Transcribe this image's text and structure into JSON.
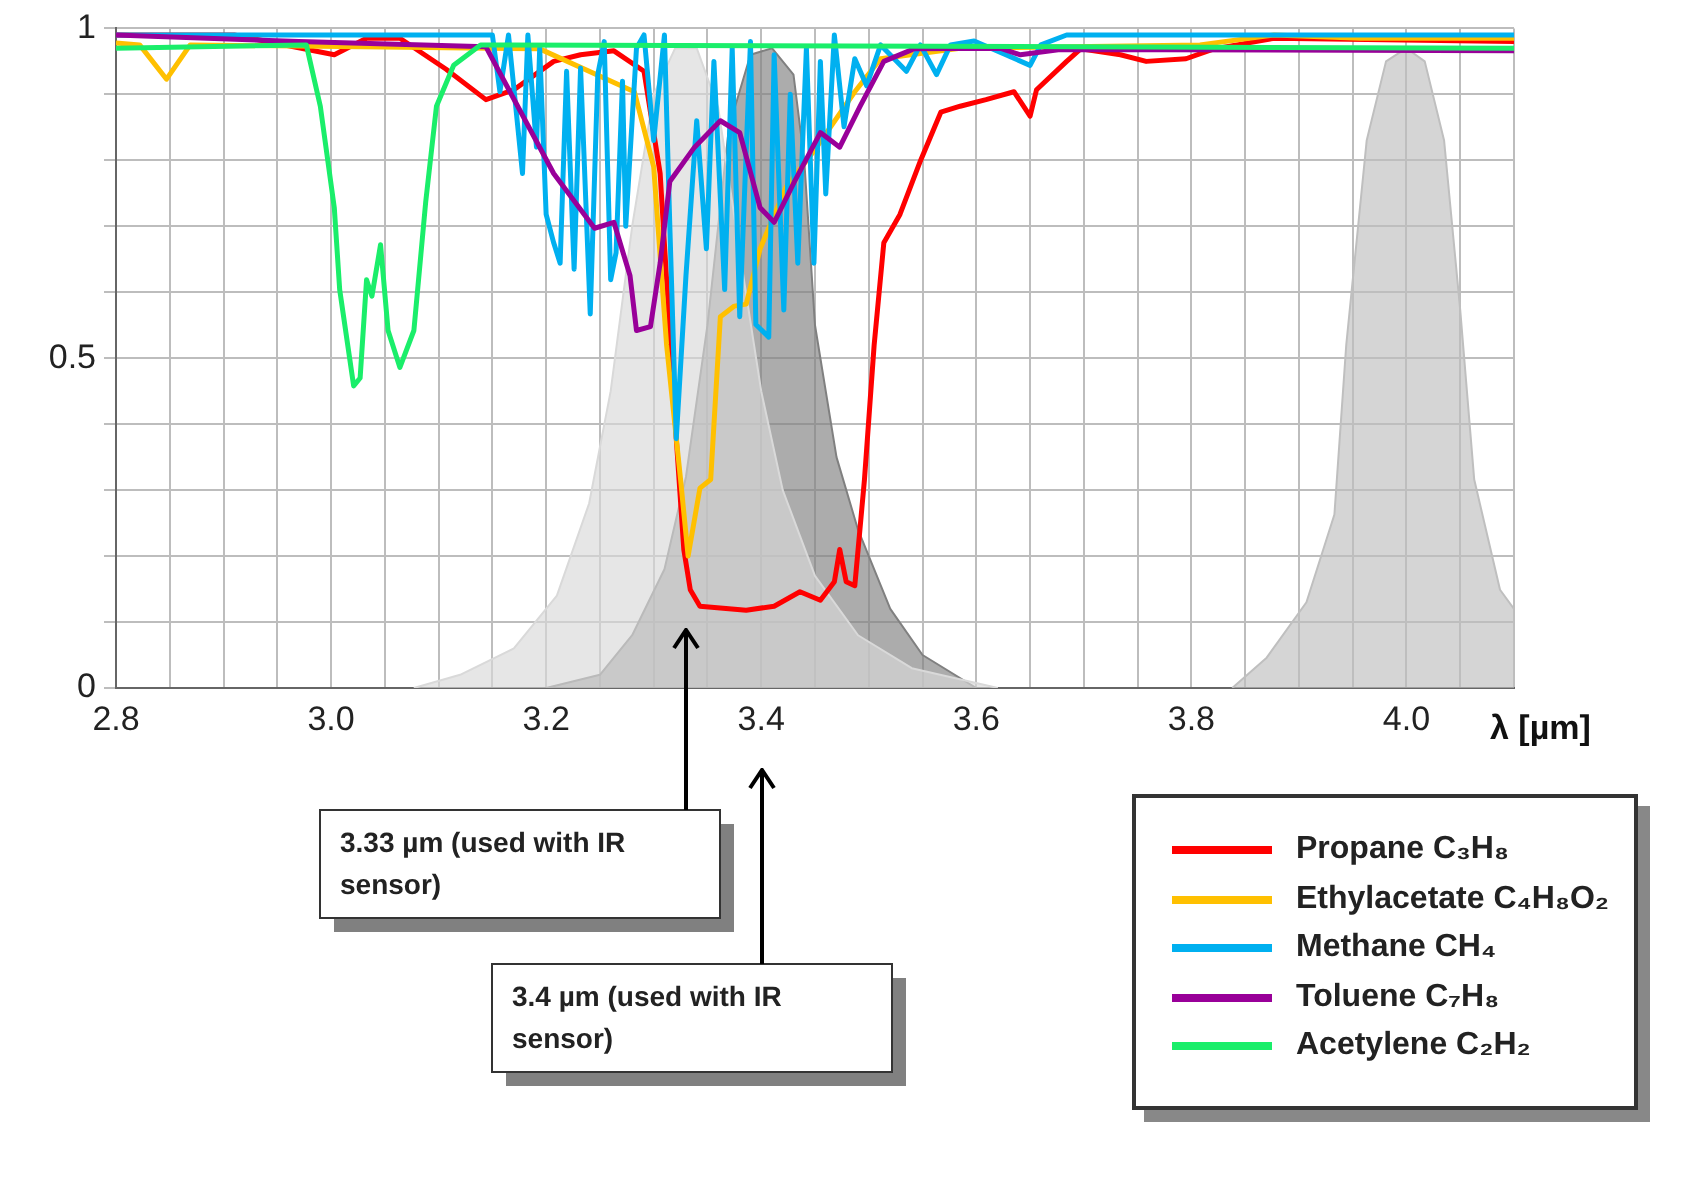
{
  "chart_data": {
    "type": "line",
    "xlabel": "λ [µm]",
    "xlim": [
      2.8,
      4.1
    ],
    "xticks": [
      2.8,
      {
        "value": 2.85,
        "label": null
      },
      {
        "value": 2.9,
        "label": null
      },
      {
        "value": 2.95,
        "label": null
      },
      {
        "value": 3.0,
        "label": "3.0"
      },
      {
        "value": 3.05,
        "label": null
      },
      {
        "value": 3.1,
        "label": null
      },
      {
        "value": 3.15,
        "label": null
      },
      3.2,
      {
        "value": 3.25,
        "label": null
      },
      {
        "value": 3.3,
        "label": null
      },
      {
        "value": 3.35,
        "label": null
      },
      3.4,
      {
        "value": 3.45,
        "label": null
      },
      {
        "value": 3.5,
        "label": null
      },
      {
        "value": 3.55,
        "label": null
      },
      3.6,
      {
        "value": 3.65,
        "label": null
      },
      {
        "value": 3.7,
        "label": null
      },
      {
        "value": 3.75,
        "label": null
      },
      3.8,
      {
        "value": 3.85,
        "label": null
      },
      {
        "value": 3.9,
        "label": null
      },
      {
        "value": 3.95,
        "label": null
      },
      {
        "value": 4.0,
        "label": "4.0"
      },
      {
        "value": 4.05,
        "label": null
      },
      {
        "value": 4.1,
        "label": null
      }
    ],
    "ylim": [
      0,
      1
    ],
    "yticks": [
      0,
      {
        "value": 0.1,
        "label": null
      },
      {
        "value": 0.2,
        "label": null
      },
      {
        "value": 0.3,
        "label": null
      },
      {
        "value": 0.4,
        "label": null
      },
      0.5,
      {
        "value": 0.6,
        "label": null
      },
      {
        "value": 0.7,
        "label": null
      },
      {
        "value": 0.8,
        "label": null
      },
      {
        "value": 0.9,
        "label": null
      },
      1
    ],
    "grid": true,
    "legend": "bottom right",
    "series": [
      {
        "type": "area",
        "color": "#d9d9d9",
        "x": [
          3.077,
          3.12,
          3.17,
          3.21,
          3.24,
          3.26,
          3.28,
          3.3,
          3.32,
          3.34,
          3.36,
          3.38,
          3.4,
          3.42,
          3.45,
          3.49,
          3.54,
          3.62
        ],
        "values": [
          0,
          0.02,
          0.06,
          0.14,
          0.28,
          0.45,
          0.7,
          0.9,
          0.97,
          0.97,
          0.88,
          0.66,
          0.45,
          0.3,
          0.17,
          0.08,
          0.03,
          0
        ]
      },
      {
        "type": "area",
        "color": "#808080",
        "x": [
          3.2,
          3.25,
          3.28,
          3.31,
          3.33,
          3.35,
          3.37,
          3.39,
          3.41,
          3.43,
          3.44,
          3.45,
          3.47,
          3.49,
          3.52,
          3.55,
          3.6
        ],
        "values": [
          0,
          0.02,
          0.08,
          0.18,
          0.32,
          0.55,
          0.85,
          0.96,
          0.97,
          0.93,
          0.8,
          0.55,
          0.35,
          0.24,
          0.12,
          0.05,
          0
        ]
      },
      {
        "type": "area",
        "color": "#bfbfbf",
        "x": [
          3.838,
          3.87,
          3.907,
          3.933,
          3.944,
          3.963,
          3.981,
          4.0,
          4.017,
          4.035,
          4.05,
          4.063,
          4.087,
          4.1
        ],
        "values": [
          0,
          0.046,
          0.13,
          0.263,
          0.52,
          0.83,
          0.95,
          0.97,
          0.95,
          0.83,
          0.573,
          0.316,
          0.149,
          0.12
        ]
      },
      {
        "type": "line",
        "name": "Propane C₃H₈",
        "color": "#ff0000",
        "x": [
          2.8,
          2.91,
          2.984,
          3.003,
          3.033,
          3.064,
          3.107,
          3.144,
          3.17,
          3.207,
          3.232,
          3.263,
          3.291,
          3.306,
          3.321,
          3.328,
          3.334,
          3.343,
          3.386,
          3.412,
          3.436,
          3.455,
          3.468,
          3.473,
          3.479,
          3.487,
          3.496,
          3.505,
          3.514,
          3.529,
          3.548,
          3.567,
          3.585,
          3.609,
          3.635,
          3.65,
          3.656,
          3.684,
          3.697,
          3.734,
          3.758,
          3.795,
          3.821,
          3.877,
          4.1
        ],
        "values": [
          0.99,
          0.99,
          0.966,
          0.96,
          0.985,
          0.985,
          0.938,
          0.892,
          0.907,
          0.95,
          0.96,
          0.966,
          0.935,
          0.78,
          0.378,
          0.21,
          0.149,
          0.124,
          0.118,
          0.124,
          0.146,
          0.133,
          0.161,
          0.21,
          0.161,
          0.155,
          0.316,
          0.52,
          0.675,
          0.718,
          0.799,
          0.873,
          0.882,
          0.892,
          0.904,
          0.867,
          0.907,
          0.95,
          0.969,
          0.96,
          0.95,
          0.954,
          0.969,
          0.985,
          0.98
        ]
      },
      {
        "type": "line",
        "name": "Ethylacetate C₄H₈O₂",
        "color": "#ffc000",
        "x": [
          2.8,
          2.822,
          2.847,
          2.869,
          3.194,
          3.282,
          3.3,
          3.312,
          3.325,
          3.332,
          3.343,
          3.353,
          3.362,
          3.375,
          3.386,
          3.399,
          3.423,
          3.449,
          3.487,
          3.511,
          3.585,
          3.808,
          3.877,
          3.957,
          4.1
        ],
        "values": [
          0.978,
          0.975,
          0.923,
          0.975,
          0.969,
          0.904,
          0.79,
          0.52,
          0.316,
          0.2,
          0.303,
          0.316,
          0.563,
          0.579,
          0.582,
          0.666,
          0.759,
          0.814,
          0.904,
          0.954,
          0.97,
          0.975,
          0.99,
          0.985,
          0.985
        ]
      },
      {
        "type": "line",
        "name": "Methane CH₄",
        "color": "#00b0f0",
        "x": [
          2.8,
          3.15,
          3.157,
          3.165,
          3.178,
          3.183,
          3.191,
          3.194,
          3.2,
          3.207,
          3.213,
          3.219,
          3.226,
          3.232,
          3.241,
          3.248,
          3.254,
          3.26,
          3.265,
          3.271,
          3.274,
          3.284,
          3.291,
          3.3,
          3.31,
          3.315,
          3.321,
          3.33,
          3.34,
          3.349,
          3.356,
          3.366,
          3.373,
          3.38,
          3.39,
          3.395,
          3.407,
          3.412,
          3.421,
          3.427,
          3.434,
          3.442,
          3.449,
          3.455,
          3.46,
          3.468,
          3.477,
          3.487,
          3.498,
          3.511,
          3.535,
          3.548,
          3.563,
          3.576,
          3.598,
          3.65,
          3.66,
          3.684,
          4.1
        ],
        "values": [
          0.99,
          0.99,
          0.904,
          0.99,
          0.78,
          0.99,
          0.82,
          0.97,
          0.718,
          0.675,
          0.644,
          0.935,
          0.635,
          0.94,
          0.567,
          0.93,
          0.98,
          0.619,
          0.66,
          0.92,
          0.7,
          0.97,
          0.99,
          0.83,
          0.99,
          0.7,
          0.378,
          0.625,
          0.86,
          0.666,
          0.95,
          0.604,
          0.97,
          0.563,
          0.98,
          0.551,
          0.532,
          0.96,
          0.573,
          0.9,
          0.644,
          0.97,
          0.644,
          0.95,
          0.749,
          0.99,
          0.851,
          0.954,
          0.913,
          0.975,
          0.935,
          0.975,
          0.93,
          0.975,
          0.981,
          0.944,
          0.975,
          0.99,
          0.99
        ]
      },
      {
        "type": "line",
        "name": "Toluene C₇H₈",
        "color": "#990099",
        "x": [
          2.8,
          2.97,
          3.144,
          3.207,
          3.245,
          3.263,
          3.278,
          3.284,
          3.297,
          3.306,
          3.315,
          3.338,
          3.362,
          3.38,
          3.399,
          3.412,
          3.431,
          3.455,
          3.473,
          3.492,
          3.514,
          3.542,
          3.622,
          3.641,
          3.678,
          4.1
        ],
        "values": [
          0.99,
          0.98,
          0.972,
          0.78,
          0.697,
          0.706,
          0.625,
          0.542,
          0.548,
          0.644,
          0.768,
          0.82,
          0.86,
          0.842,
          0.728,
          0.706,
          0.768,
          0.842,
          0.82,
          0.882,
          0.95,
          0.969,
          0.97,
          0.96,
          0.968,
          0.966
        ]
      },
      {
        "type": "line",
        "name": "Acetylene C₂H₂",
        "color": "#1aee6a",
        "x": [
          2.8,
          2.977,
          2.99,
          3.003,
          3.008,
          3.021,
          3.027,
          3.033,
          3.038,
          3.046,
          3.053,
          3.064,
          3.077,
          3.088,
          3.098,
          3.114,
          3.139,
          4.1
        ],
        "values": [
          0.97,
          0.975,
          0.882,
          0.728,
          0.604,
          0.458,
          0.47,
          0.619,
          0.594,
          0.672,
          0.542,
          0.486,
          0.542,
          0.737,
          0.882,
          0.944,
          0.975,
          0.97
        ]
      }
    ],
    "annotations": [
      "3.33 µm (used with IR sensor)",
      "3.4 µm (used with IR sensor)"
    ]
  }
}
